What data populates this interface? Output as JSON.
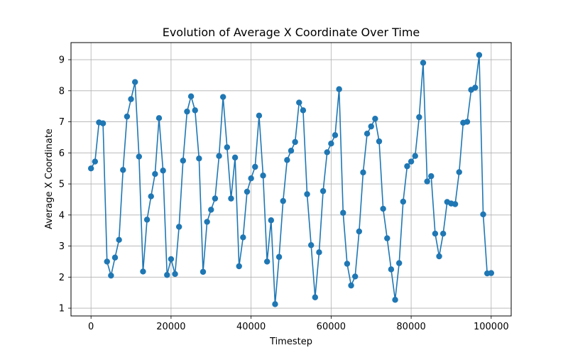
{
  "chart_data": {
    "type": "line",
    "title": "Evolution of Average X Coordinate Over Time",
    "xlabel": "Timestep",
    "ylabel": "Average X Coordinate",
    "xlim": [
      -5000,
      105000
    ],
    "ylim": [
      0.75,
      9.55
    ],
    "xticks": [
      0,
      20000,
      40000,
      60000,
      80000,
      100000
    ],
    "xtick_labels": [
      "0",
      "20000",
      "40000",
      "60000",
      "80000",
      "100000"
    ],
    "yticks": [
      1,
      2,
      3,
      4,
      5,
      6,
      7,
      8,
      9
    ],
    "ytick_labels": [
      "1",
      "2",
      "3",
      "4",
      "5",
      "6",
      "7",
      "8",
      "9"
    ],
    "grid": true,
    "color": "#1f77b4",
    "marker": "circle",
    "x": [
      0,
      1000,
      2000,
      3000,
      4000,
      5000,
      6000,
      7000,
      8000,
      9000,
      10000,
      11000,
      12000,
      13000,
      14000,
      15000,
      16000,
      17000,
      18000,
      19000,
      20000,
      21000,
      22000,
      23000,
      24000,
      25000,
      26000,
      27000,
      28000,
      29000,
      30000,
      31000,
      32000,
      33000,
      34000,
      35000,
      36000,
      37000,
      38000,
      39000,
      40000,
      41000,
      42000,
      43000,
      44000,
      45000,
      46000,
      47000,
      48000,
      49000,
      50000,
      51000,
      52000,
      53000,
      54000,
      55000,
      56000,
      57000,
      58000,
      59000,
      60000,
      61000,
      62000,
      63000,
      64000,
      65000,
      66000,
      67000,
      68000,
      69000,
      70000,
      71000,
      72000,
      73000,
      74000,
      75000,
      76000,
      77000,
      78000,
      79000,
      80000,
      81000,
      82000,
      83000,
      84000,
      85000,
      86000,
      87000,
      88000,
      89000,
      90000,
      91000,
      92000,
      93000,
      94000,
      95000,
      96000,
      97000,
      98000,
      99000,
      100000
    ],
    "y": [
      5.5,
      5.72,
      6.98,
      6.95,
      2.5,
      2.05,
      2.63,
      3.2,
      5.45,
      7.17,
      7.73,
      8.28,
      5.88,
      2.18,
      3.85,
      4.6,
      5.32,
      7.12,
      5.43,
      2.07,
      2.58,
      2.1,
      3.62,
      5.75,
      7.33,
      7.82,
      7.37,
      5.82,
      2.17,
      3.78,
      4.17,
      4.53,
      5.9,
      7.8,
      6.18,
      4.53,
      5.85,
      2.35,
      3.28,
      4.75,
      5.18,
      5.55,
      7.2,
      5.27,
      2.5,
      3.83,
      1.13,
      2.65,
      4.45,
      5.77,
      6.07,
      6.35,
      7.62,
      7.37,
      4.67,
      3.03,
      1.35,
      2.8,
      4.77,
      6.02,
      6.3,
      6.57,
      8.05,
      4.07,
      2.43,
      1.73,
      2.02,
      3.47,
      5.37,
      6.62,
      6.85,
      7.1,
      6.37,
      4.2,
      3.25,
      2.25,
      1.27,
      2.45,
      4.43,
      5.57,
      5.72,
      5.9,
      7.15,
      8.9,
      5.08,
      5.25,
      3.4,
      2.67,
      3.4,
      4.42,
      4.37,
      4.35,
      5.38,
      6.97,
      7.0,
      8.03,
      8.1,
      9.15,
      4.02,
      2.12,
      2.13
    ]
  }
}
